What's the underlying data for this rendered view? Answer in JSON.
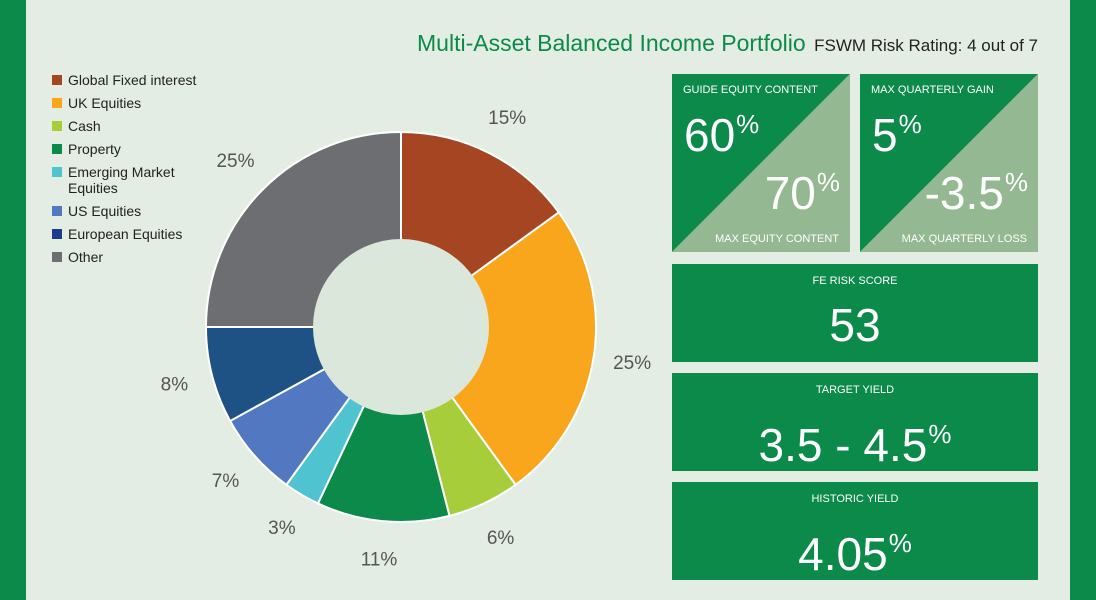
{
  "header": {
    "title": "Multi-Asset Balanced Income Portfolio",
    "risk_rating": "FSWM Risk Rating: 4 out of 7"
  },
  "chart_data": {
    "type": "pie",
    "categories": [
      "Global Fixed interest",
      "UK Equities",
      "Cash",
      "Property",
      "Emerging Market Equities",
      "US Equities",
      "European Equities",
      "Other"
    ],
    "legend_labels": [
      "Global Fixed interest",
      "UK Equities",
      "Cash",
      "Property",
      "Emerging Market\nEquities",
      "US Equities",
      "European Equities",
      "Other"
    ],
    "colors": [
      "#a54522",
      "#f9a61c",
      "#a8cd3a",
      "#0b8a4a",
      "#4fc3d0",
      "#5178c0",
      "#1a3c8a",
      "#6d6e71"
    ],
    "slice_colors": [
      "#a54522",
      "#f9a61c",
      "#a8cd3a",
      "#0b8a4a",
      "#4fc3d0",
      "#5178c0",
      "#1e5284",
      "#6d6e71"
    ],
    "values": [
      15,
      25,
      6,
      11,
      3,
      7,
      8,
      25
    ],
    "labels": [
      "15%",
      "25%",
      "6%",
      "11%",
      "3%",
      "7%",
      "8%",
      "25%"
    ],
    "donut": true,
    "legend_position": "left"
  },
  "cards": {
    "equity": {
      "guide_label": "GUIDE EQUITY CONTENT",
      "guide_value": "60",
      "max_label": "MAX EQUITY CONTENT",
      "max_value": "70",
      "percent_sign": "%"
    },
    "quarterly": {
      "gain_label": "MAX QUARTERLY GAIN",
      "gain_value": "5",
      "loss_label": "MAX QUARTERLY LOSS",
      "loss_value": "-3.5",
      "percent_sign": "%"
    },
    "fe_risk": {
      "label": "FE RISK SCORE",
      "value": "53"
    },
    "target_yield": {
      "label": "TARGET YIELD",
      "value": "3.5 - 4.5",
      "percent_sign": "%"
    },
    "historic_yield": {
      "label": "HISTORIC YIELD",
      "value": "4.05",
      "percent_sign": "%"
    }
  },
  "colors": {
    "brand_green": "#0b8a4a",
    "light_green": "#94b892",
    "background": "#e4ede3",
    "donut_hole": "#dce7dc"
  }
}
